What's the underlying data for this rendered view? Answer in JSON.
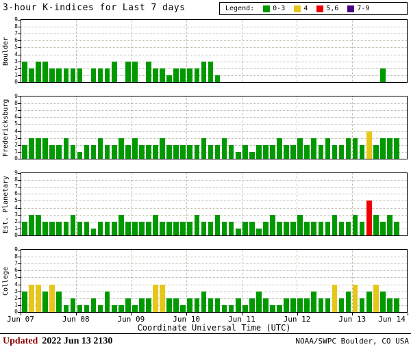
{
  "chart_data": {
    "type": "bar",
    "title": "3-hour K-indices for Last 7 days",
    "xlabel": "Coordinate Universal Time (UTC)",
    "ylim": [
      0,
      9
    ],
    "y_ticks": [
      0,
      1,
      2,
      3,
      4,
      5,
      6,
      7,
      8,
      9
    ],
    "x_tick_labels": [
      "Jun 07",
      "Jun 08",
      "Jun 09",
      "Jun 10",
      "Jun 11",
      "Jun 12",
      "Jun 13",
      "Jun 14"
    ],
    "bars_per_day": 8,
    "days_shown": 7,
    "grid": "dotted horizontal at each K level, dotted vertical at day boundaries",
    "k_ranges": [
      {
        "range": "0-3",
        "color": "#009900"
      },
      {
        "range": "4",
        "color": "#e6c619"
      },
      {
        "range": "5,6",
        "color": "#ee0000"
      },
      {
        "range": "7-9",
        "color": "#4b0082"
      }
    ],
    "panels": [
      {
        "station": "Boulder",
        "values": [
          3,
          2,
          3,
          3,
          2,
          2,
          2,
          2,
          2,
          0,
          2,
          2,
          2,
          3,
          0,
          3,
          3,
          0,
          3,
          2,
          2,
          1,
          2,
          2,
          2,
          2,
          3,
          3,
          1,
          0,
          0,
          0,
          0,
          0,
          0,
          0,
          0,
          0,
          0,
          0,
          0,
          0,
          0,
          0,
          0,
          0,
          0,
          0,
          0,
          0,
          0,
          0,
          2,
          0,
          0
        ]
      },
      {
        "station": "Fredericksburg",
        "values": [
          2,
          3,
          3,
          3,
          2,
          2,
          3,
          2,
          1,
          2,
          2,
          3,
          2,
          2,
          3,
          2,
          3,
          2,
          2,
          2,
          3,
          2,
          2,
          2,
          2,
          2,
          3,
          2,
          2,
          3,
          2,
          1,
          2,
          1,
          2,
          2,
          2,
          3,
          2,
          2,
          3,
          2,
          3,
          2,
          3,
          2,
          2,
          3,
          3,
          2,
          4,
          2,
          3,
          3,
          3
        ]
      },
      {
        "station": "Est. Planetary",
        "values": [
          2,
          3,
          3,
          2,
          2,
          2,
          2,
          3,
          2,
          2,
          1,
          2,
          2,
          2,
          3,
          2,
          2,
          2,
          2,
          3,
          2,
          2,
          2,
          2,
          2,
          3,
          2,
          2,
          3,
          2,
          2,
          1,
          2,
          2,
          1,
          2,
          3,
          2,
          2,
          2,
          3,
          2,
          2,
          2,
          2,
          3,
          2,
          2,
          3,
          2,
          5,
          3,
          2,
          3,
          2
        ]
      },
      {
        "station": "College",
        "values": [
          3,
          4,
          4,
          3,
          4,
          3,
          1,
          2,
          1,
          1,
          2,
          1,
          3,
          1,
          1,
          2,
          1,
          2,
          2,
          4,
          4,
          2,
          2,
          1,
          2,
          2,
          3,
          2,
          2,
          1,
          1,
          2,
          1,
          2,
          3,
          2,
          1,
          1,
          2,
          2,
          2,
          2,
          3,
          2,
          2,
          4,
          2,
          3,
          4,
          2,
          3,
          4,
          3,
          2,
          2
        ]
      }
    ]
  },
  "legend": {
    "label": "Legend:",
    "items": [
      {
        "label": "0-3",
        "color": "#009900"
      },
      {
        "label": "4",
        "color": "#e6c619"
      },
      {
        "label": "5,6",
        "color": "#ee0000"
      },
      {
        "label": "7-9",
        "color": "#4b0082"
      }
    ]
  },
  "footer": {
    "updated_label": "Updated",
    "updated_time": "2022 Jun 13 2130",
    "credit": "NOAA/SWPC Boulder, CO USA"
  }
}
